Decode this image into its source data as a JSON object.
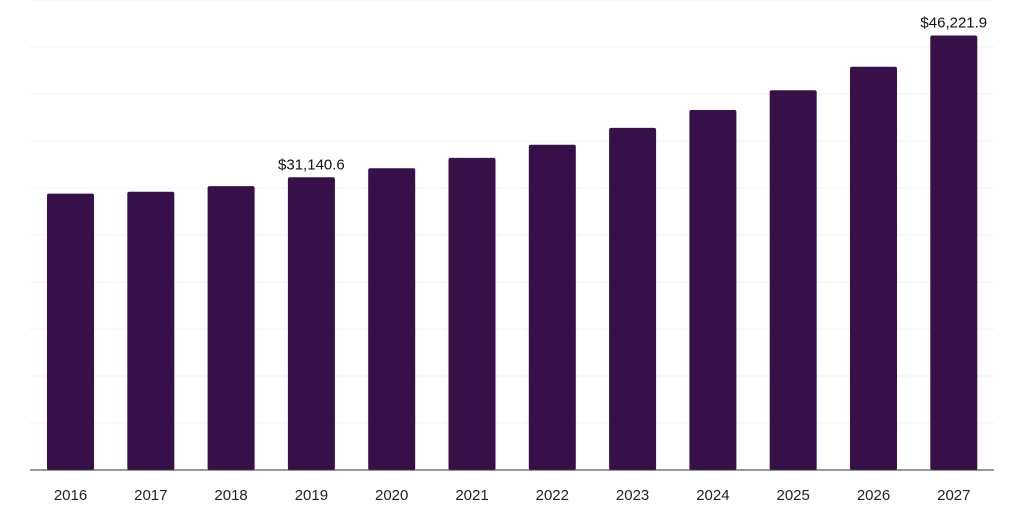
{
  "chart_data": {
    "type": "bar",
    "title": "",
    "xlabel": "",
    "ylabel": "",
    "categories": [
      "2016",
      "2017",
      "2018",
      "2019",
      "2020",
      "2021",
      "2022",
      "2023",
      "2024",
      "2025",
      "2026",
      "2027"
    ],
    "values": [
      29400,
      29600,
      30200,
      31140.6,
      32100,
      33200,
      34600,
      36400,
      38300,
      40400,
      42900,
      46221.9
    ],
    "data_labels": [
      {
        "category": "2019",
        "text": "$31,140.6"
      },
      {
        "category": "2027",
        "text": "$46,221.9"
      }
    ],
    "ylim": [
      0,
      50000
    ],
    "grid": true,
    "legend": "none",
    "colors": {
      "bar": "#37104a",
      "grid": "#f0f0f0",
      "axis": "#333333"
    }
  }
}
